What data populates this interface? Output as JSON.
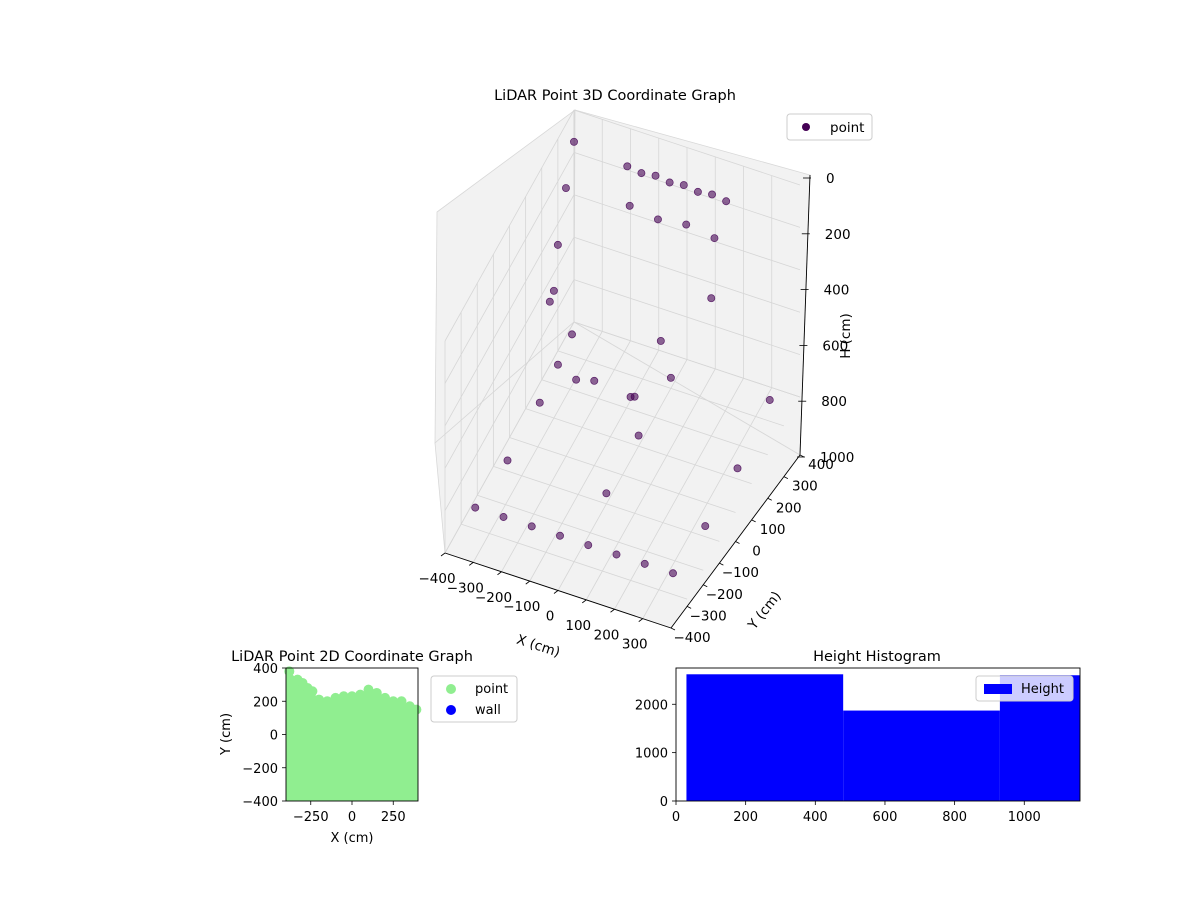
{
  "chart_data": [
    {
      "type": "scatter",
      "projection": "3d",
      "title": "LiDAR Point 3D Coordinate Graph",
      "xlabel": "X (cm)",
      "ylabel": "Y (cm)",
      "zlabel": "H (cm)",
      "xlim": [
        -400,
        400
      ],
      "ylim": [
        -400,
        400
      ],
      "zlim": [
        1000,
        0
      ],
      "x_ticks": [
        -400,
        -300,
        -200,
        -100,
        0,
        100,
        200,
        300
      ],
      "y_ticks": [
        -400,
        -300,
        -200,
        -100,
        0,
        100,
        200,
        300,
        400
      ],
      "z_ticks": [
        0,
        200,
        400,
        600,
        800,
        1000
      ],
      "grid": true,
      "legend": {
        "placement": "top-right",
        "entries": [
          "point"
        ]
      },
      "colormap": "viridis",
      "series": [
        {
          "name": "point",
          "color": "#440154",
          "points": [
            [
              -200,
              380,
              150
            ],
            [
              -150,
              380,
              160
            ],
            [
              -100,
              380,
              150
            ],
            [
              -50,
              380,
              160
            ],
            [
              0,
              380,
              150
            ],
            [
              50,
              380,
              160
            ],
            [
              100,
              380,
              150
            ],
            [
              150,
              380,
              160
            ],
            [
              -180,
              360,
              300
            ],
            [
              -80,
              360,
              320
            ],
            [
              20,
              360,
              300
            ],
            [
              120,
              360,
              320
            ],
            [
              -200,
              -50,
              500
            ],
            [
              -100,
              0,
              600
            ],
            [
              0,
              50,
              700
            ],
            [
              100,
              -100,
              450
            ],
            [
              -300,
              100,
              400
            ],
            [
              200,
              200,
              350
            ],
            [
              -50,
              -200,
              300
            ],
            [
              50,
              150,
              550
            ],
            [
              -350,
              -300,
              900
            ],
            [
              -250,
              -300,
              900
            ],
            [
              -150,
              -300,
              900
            ],
            [
              -50,
              -300,
              900
            ],
            [
              50,
              -300,
              900
            ],
            [
              150,
              -300,
              900
            ],
            [
              250,
              -300,
              900
            ],
            [
              350,
              -300,
              900
            ],
            [
              -350,
              -100,
              950
            ],
            [
              0,
              -100,
              950
            ],
            [
              350,
              -100,
              950
            ],
            [
              -350,
              100,
              950
            ],
            [
              0,
              100,
              950
            ],
            [
              350,
              100,
              950
            ],
            [
              -350,
              300,
              900
            ],
            [
              0,
              300,
              950
            ],
            [
              350,
              300,
              900
            ],
            [
              -400,
              400,
              150
            ],
            [
              -400,
              350,
              300
            ],
            [
              -400,
              300,
              500
            ],
            [
              -400,
              250,
              700
            ]
          ]
        }
      ]
    },
    {
      "type": "scatter",
      "title": "LiDAR Point 2D Coordinate Graph",
      "xlabel": "X (cm)",
      "ylabel": "Y (cm)",
      "xlim": [
        -400,
        400
      ],
      "ylim": [
        -400,
        400
      ],
      "x_ticks": [
        -250,
        0,
        250
      ],
      "y_ticks": [
        -400,
        -200,
        0,
        200,
        400
      ],
      "grid": false,
      "legend": {
        "placement": "outside-right"
      },
      "series": [
        {
          "name": "point",
          "color": "#90ee90",
          "region": "filled area from y=-400 up to y≈200 across x=-400..400",
          "points": [
            [
              -380,
              380
            ],
            [
              -330,
              330
            ],
            [
              -300,
              310
            ],
            [
              -270,
              280
            ],
            [
              -240,
              260
            ],
            [
              -200,
              210
            ],
            [
              -150,
              200
            ],
            [
              -100,
              220
            ],
            [
              -50,
              230
            ],
            [
              0,
              230
            ],
            [
              50,
              240
            ],
            [
              100,
              270
            ],
            [
              150,
              250
            ],
            [
              200,
              220
            ],
            [
              250,
              200
            ],
            [
              300,
              200
            ],
            [
              350,
              170
            ],
            [
              390,
              150
            ]
          ]
        },
        {
          "name": "wall",
          "color": "#0000ff",
          "points": []
        }
      ]
    },
    {
      "type": "bar",
      "title": "Height Histogram",
      "xlabel": "",
      "ylabel": "",
      "xlim": [
        0,
        1160
      ],
      "ylim": [
        0,
        2750
      ],
      "x_ticks": [
        0,
        200,
        400,
        600,
        800,
        1000
      ],
      "y_ticks": [
        0,
        1000,
        2000
      ],
      "legend": {
        "placement": "top-right",
        "entries": [
          "Height"
        ]
      },
      "series": [
        {
          "name": "Height",
          "color": "#0000ff",
          "bins": [
            {
              "start": 30,
              "end": 480,
              "count": 2620
            },
            {
              "start": 480,
              "end": 930,
              "count": 1870
            },
            {
              "start": 930,
              "end": 1160,
              "count": 2600
            }
          ]
        }
      ]
    }
  ]
}
